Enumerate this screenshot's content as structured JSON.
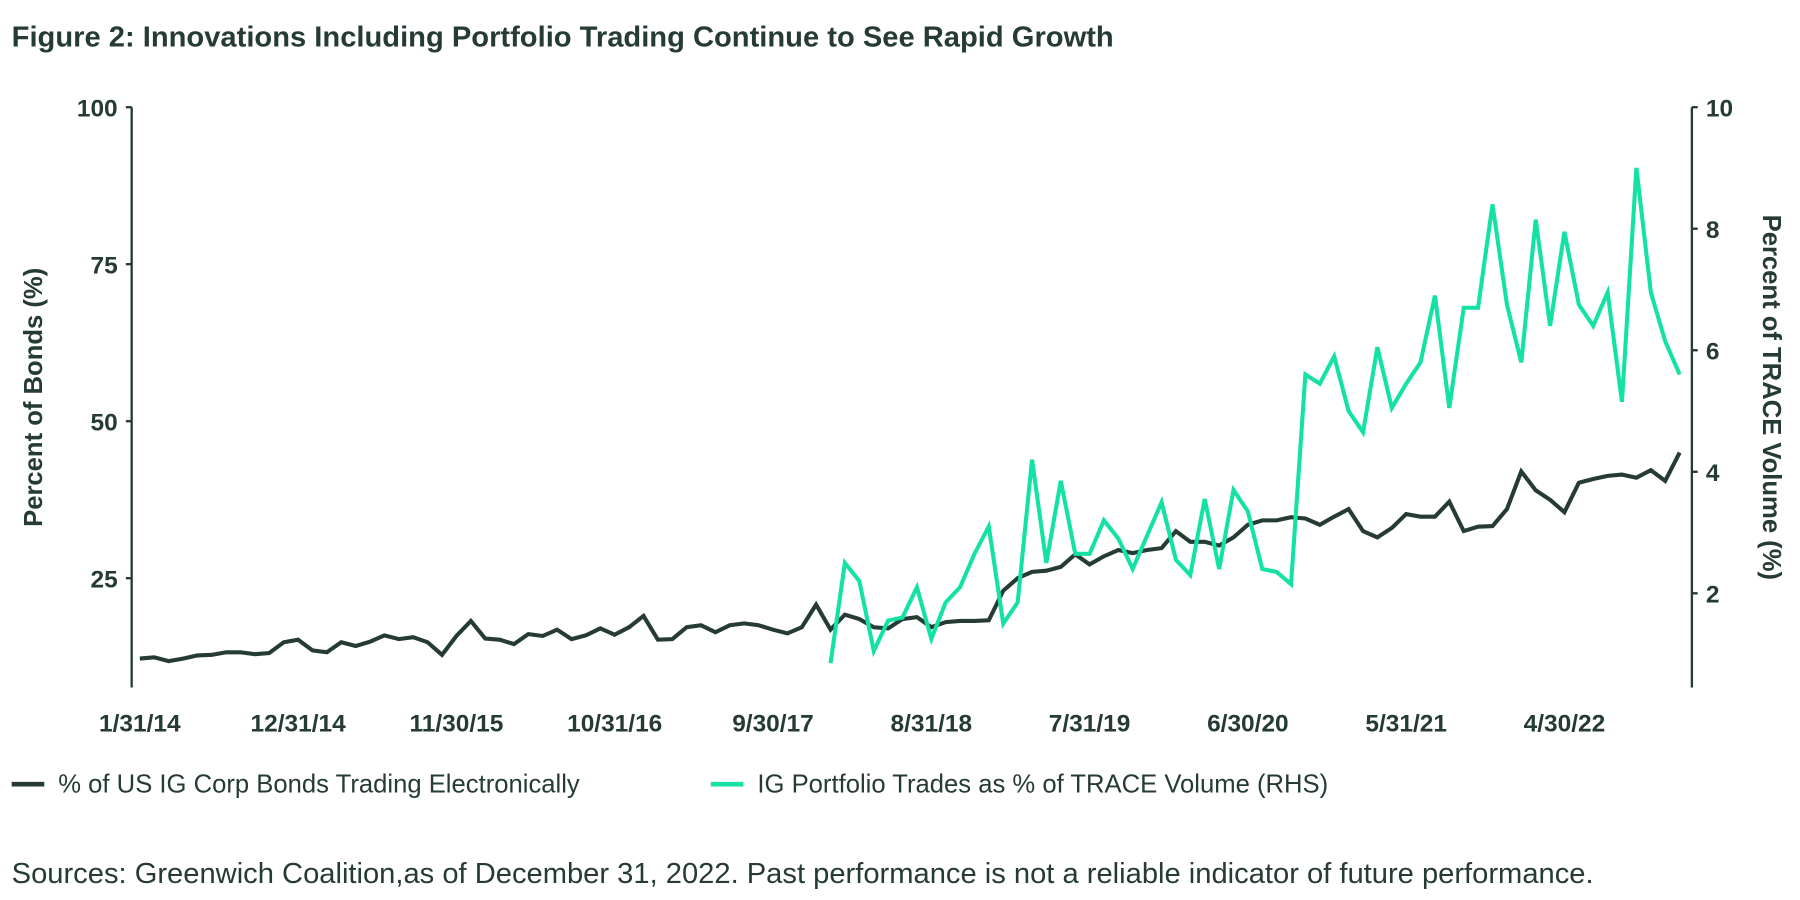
{
  "chart_data": {
    "type": "line",
    "title": "Figure 2: Innovations Including Portfolio Trading Continue to See Rapid Growth",
    "period": "monthly",
    "x_tick_labels": [
      "1/31/14",
      "12/31/14",
      "11/30/15",
      "10/31/16",
      "9/30/17",
      "8/31/18",
      "7/31/19",
      "6/30/20",
      "5/31/21",
      "4/30/22"
    ],
    "ylabel_left": "Percent of Bonds (%)",
    "ylabel_right": "Percent of TRACE Volume (%)",
    "y_left_ticks": [
      25,
      50,
      75,
      100
    ],
    "y_right_ticks": [
      2,
      4,
      6,
      8,
      10
    ],
    "ylim_left": [
      7.6,
      100
    ],
    "ylim_right": [
      0.45,
      10
    ],
    "grid": false,
    "legend_position": "bottom",
    "series": [
      {
        "name": "% of US IG Corp Bonds Trading Electronically",
        "axis": "left",
        "color": "#253b33",
        "values": [
          12.2,
          12.4,
          11.8,
          12.2,
          12.7,
          12.8,
          13.2,
          13.2,
          12.9,
          13.1,
          14.8,
          15.2,
          13.5,
          13.2,
          14.8,
          14.2,
          14.9,
          15.9,
          15.3,
          15.6,
          14.8,
          12.8,
          15.8,
          18.2,
          15.4,
          15.2,
          14.5,
          16.1,
          15.8,
          16.8,
          15.3,
          15.9,
          17,
          16,
          17.2,
          19,
          15.2,
          15.3,
          17.2,
          17.5,
          16.4,
          17.5,
          17.8,
          17.5,
          16.8,
          16.2,
          17.2,
          20.8,
          16.8,
          19.2,
          18.5,
          17.2,
          17,
          18.5,
          18.8,
          17.2,
          18,
          18.2,
          18.2,
          18.3,
          23,
          25,
          26,
          26.2,
          26.8,
          28.8,
          27.2,
          28.5,
          29.5,
          29,
          29.5,
          29.8,
          32.5,
          30.8,
          30.8,
          30.2,
          31.5,
          33.5,
          34.2,
          34.2,
          34.7,
          34.5,
          33.5,
          34.8,
          36,
          32.5,
          31.5,
          33,
          35.2,
          34.8,
          34.8,
          37.2,
          32.5,
          33.2,
          33.3,
          36,
          42,
          39,
          37.5,
          35.5,
          40.2,
          40.8,
          41.3,
          41.5,
          41,
          42.2,
          40.5,
          45
        ]
      },
      {
        "name": "IG Portfolio Trades as % of TRACE Volume (RHS)",
        "axis": "right",
        "color": "#14e2a4",
        "values": [
          null,
          null,
          null,
          null,
          null,
          null,
          null,
          null,
          null,
          null,
          null,
          null,
          null,
          null,
          null,
          null,
          null,
          null,
          null,
          null,
          null,
          null,
          null,
          null,
          null,
          null,
          null,
          null,
          null,
          null,
          null,
          null,
          null,
          null,
          null,
          null,
          null,
          null,
          null,
          null,
          null,
          null,
          null,
          null,
          null,
          null,
          null,
          null,
          0.85,
          2.5,
          2.2,
          1.05,
          1.55,
          1.6,
          2.1,
          1.25,
          1.85,
          2.1,
          2.65,
          3.1,
          1.5,
          1.85,
          4.2,
          2.5,
          3.85,
          2.65,
          2.65,
          3.2,
          2.9,
          2.4,
          2.95,
          3.5,
          2.55,
          2.3,
          3.55,
          2.4,
          3.7,
          3.35,
          2.4,
          2.35,
          2.15,
          5.6,
          5.45,
          5.9,
          5.0,
          4.65,
          6.05,
          5.05,
          5.45,
          5.8,
          6.9,
          5.05,
          6.7,
          6.7,
          8.4,
          6.75,
          5.8,
          8.15,
          6.4,
          7.95,
          6.75,
          6.4,
          6.95,
          5.15,
          9.0,
          6.95,
          6.15,
          5.6
        ]
      }
    ]
  },
  "source": "Sources: Greenwich Coalition,as of December 31, 2022. Past performance is not a reliable indicator of future performance."
}
